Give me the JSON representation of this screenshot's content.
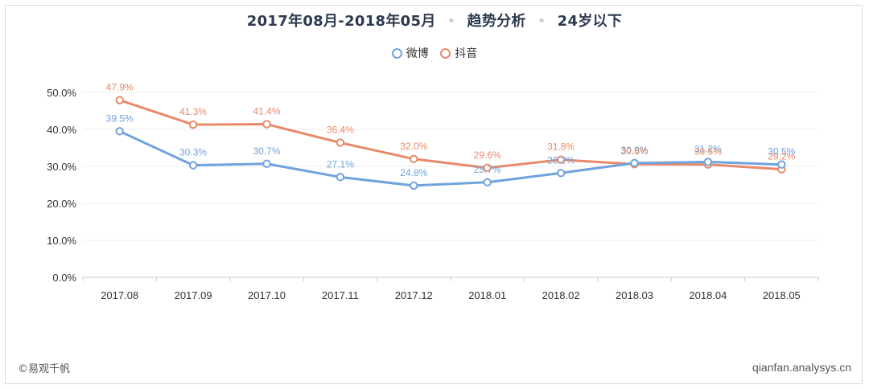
{
  "header": {
    "period": "2017年08月-2018年05月",
    "analysis": "趋势分析",
    "segment": "24岁以下",
    "separator": "•"
  },
  "footer": {
    "copyright": "©易观千帆",
    "site": "qianfan.analysys.cn"
  },
  "chart_data": {
    "type": "line",
    "title": "",
    "xlabel": "",
    "ylabel": "",
    "categories": [
      "2017.08",
      "2017.09",
      "2017.10",
      "2017.11",
      "2017.12",
      "2018.01",
      "2018.02",
      "2018.03",
      "2018.04",
      "2018.05"
    ],
    "ylim": [
      0,
      50
    ],
    "yticks": [
      "0.0%",
      "10.0%",
      "20.0%",
      "30.0%",
      "40.0%",
      "50.0%"
    ],
    "grid": true,
    "legend_position": "top-center",
    "series": [
      {
        "name": "微博",
        "color": "#6fa3dd",
        "values": [
          39.5,
          30.3,
          30.7,
          27.1,
          24.8,
          25.7,
          28.2,
          30.9,
          31.2,
          30.5
        ],
        "labels": [
          "39.5%",
          "30.3%",
          "30.7%",
          "27.1%",
          "24.8%",
          "25.7%",
          "28.2%",
          "30.9%",
          "31.2%",
          "30.5%"
        ]
      },
      {
        "name": "抖音",
        "color": "#e88a6a",
        "values": [
          47.9,
          41.3,
          41.4,
          36.4,
          32.0,
          29.6,
          31.8,
          30.6,
          30.5,
          29.2
        ],
        "labels": [
          "47.9%",
          "41.3%",
          "41.4%",
          "36.4%",
          "32.0%",
          "29.6%",
          "31.8%",
          "30.6%",
          "30.5%",
          "29.2%"
        ]
      }
    ]
  }
}
